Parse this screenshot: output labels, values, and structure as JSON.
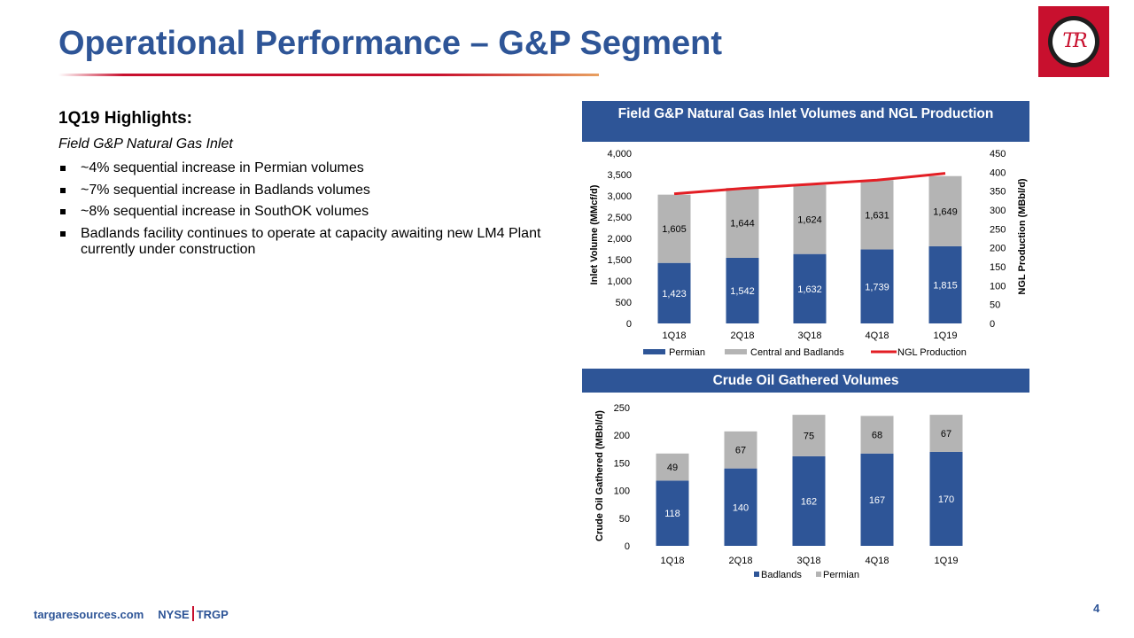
{
  "page": {
    "title": "Operational Performance – G&P Segment",
    "logo_text": "TR",
    "highlights_title": "1Q19 Highlights:",
    "highlights_subtitle": "Field G&P Natural Gas Inlet",
    "bullets": [
      "~4% sequential increase in Permian volumes",
      "~7% sequential increase in Badlands volumes",
      "~8% sequential increase in SouthOK volumes",
      "Badlands facility continues to operate at capacity awaiting new LM4 Plant currently under construction"
    ],
    "footer": {
      "website": "targaresources.com",
      "exchange": "NYSE",
      "ticker": "TRGP"
    },
    "page_number": "4"
  },
  "colors": {
    "brand_blue": "#2e5597",
    "gray": "#b4b4b4",
    "accent_red": "#e31e24"
  },
  "chart_data": [
    {
      "type": "bar",
      "stacked": true,
      "title": "Field G&P Natural Gas Inlet Volumes and NGL Production",
      "categories": [
        "1Q18",
        "2Q18",
        "3Q18",
        "4Q18",
        "1Q19"
      ],
      "ylabel": "Inlet Volume (MMcf/d)",
      "ylabel_right": "NGL Production (MBbl/d)",
      "ylim": [
        0,
        4000
      ],
      "yticks": [
        "0",
        "500",
        "1,000",
        "1,500",
        "2,000",
        "2,500",
        "3,000",
        "3,500",
        "4,000"
      ],
      "ylim_right": [
        0,
        450
      ],
      "yticks_right": [
        "0",
        "50",
        "100",
        "150",
        "200",
        "250",
        "300",
        "350",
        "400",
        "450"
      ],
      "series": [
        {
          "name": "Permian",
          "type": "bar",
          "color": "#2e5597",
          "values": [
            1423,
            1542,
            1632,
            1739,
            1815
          ],
          "labels": [
            "1,423",
            "1,542",
            "1,632",
            "1,739",
            "1,815"
          ]
        },
        {
          "name": "Central and Badlands",
          "type": "bar",
          "color": "#b4b4b4",
          "values": [
            1605,
            1644,
            1624,
            1631,
            1649
          ],
          "labels": [
            "1,605",
            "1,644",
            "1,624",
            "1,631",
            "1,649"
          ]
        },
        {
          "name": "NGL Production",
          "type": "line",
          "axis": "right",
          "color": "#e31e24",
          "values": [
            343,
            357,
            368,
            379,
            397
          ]
        }
      ],
      "legend": "bottom",
      "grid": false
    },
    {
      "type": "bar",
      "stacked": true,
      "title": "Crude Oil Gathered Volumes",
      "categories": [
        "1Q18",
        "2Q18",
        "3Q18",
        "4Q18",
        "1Q19"
      ],
      "ylabel": "Crude Oil Gathered (MBbl/d)",
      "ylim": [
        0,
        250
      ],
      "yticks": [
        "0",
        "50",
        "100",
        "150",
        "200",
        "250"
      ],
      "series": [
        {
          "name": "Badlands",
          "color": "#2e5597",
          "values": [
            118,
            140,
            162,
            167,
            170
          ],
          "labels": [
            "118",
            "140",
            "162",
            "167",
            "170"
          ]
        },
        {
          "name": "Permian",
          "color": "#b4b4b4",
          "values": [
            49,
            67,
            75,
            68,
            67
          ],
          "labels": [
            "49",
            "67",
            "75",
            "68",
            "67"
          ]
        }
      ],
      "legend": "bottom",
      "grid": false
    }
  ]
}
